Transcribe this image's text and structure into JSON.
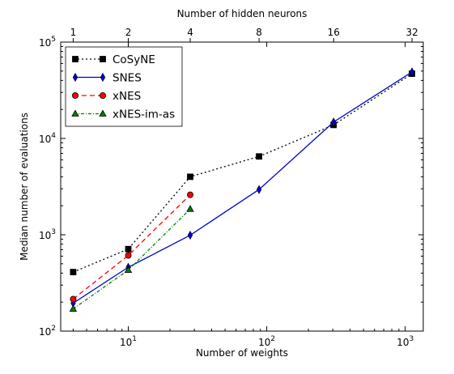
{
  "chart_data": {
    "type": "line",
    "xlabel": "Number of weights",
    "ylabel": "Median number of evaluations",
    "top_xlabel": "Number of hidden neurons",
    "xscale": "log",
    "yscale": "log",
    "xlim": [
      3.25,
      1350
    ],
    "ylim": [
      100,
      100000
    ],
    "x_ticks": [
      {
        "value": 10,
        "base": "10",
        "exp": "1"
      },
      {
        "value": 100,
        "base": "10",
        "exp": "2"
      },
      {
        "value": 1000,
        "base": "10",
        "exp": "3"
      }
    ],
    "y_ticks": [
      {
        "value": 100,
        "base": "10",
        "exp": "2"
      },
      {
        "value": 1000,
        "base": "10",
        "exp": "3"
      },
      {
        "value": 10000,
        "base": "10",
        "exp": "4"
      },
      {
        "value": 100000,
        "base": "10",
        "exp": "5"
      }
    ],
    "top_ticks": [
      {
        "label": "1",
        "weights": 4
      },
      {
        "label": "2",
        "weights": 10
      },
      {
        "label": "4",
        "weights": 28
      },
      {
        "label": "8",
        "weights": 88
      },
      {
        "label": "16",
        "weights": 304
      },
      {
        "label": "32",
        "weights": 1120
      }
    ],
    "grid": false,
    "legend_position": "top-left",
    "series": [
      {
        "name": "CoSyNE",
        "color": "#000000",
        "dash": "2,3",
        "marker": "square",
        "x": [
          4,
          10,
          28,
          88,
          304,
          1120
        ],
        "y": [
          410,
          710,
          4000,
          6500,
          13800,
          47000
        ]
      },
      {
        "name": "SNES",
        "color": "#0000cc",
        "dash": "",
        "marker": "thin-diamond",
        "x": [
          4,
          10,
          28,
          88,
          304,
          1120
        ],
        "y": [
          195,
          460,
          990,
          2950,
          14800,
          49000
        ]
      },
      {
        "name": "xNES",
        "color": "#ff0000",
        "dash": "6,4",
        "marker": "circle",
        "x": [
          4,
          10,
          28
        ],
        "y": [
          215,
          610,
          2600
        ]
      },
      {
        "name": "xNES-im-as",
        "color": "#008000",
        "dash": "4,2,1,2",
        "marker": "triangle",
        "x": [
          4,
          10,
          28
        ],
        "y": [
          170,
          430,
          1850
        ]
      }
    ]
  }
}
